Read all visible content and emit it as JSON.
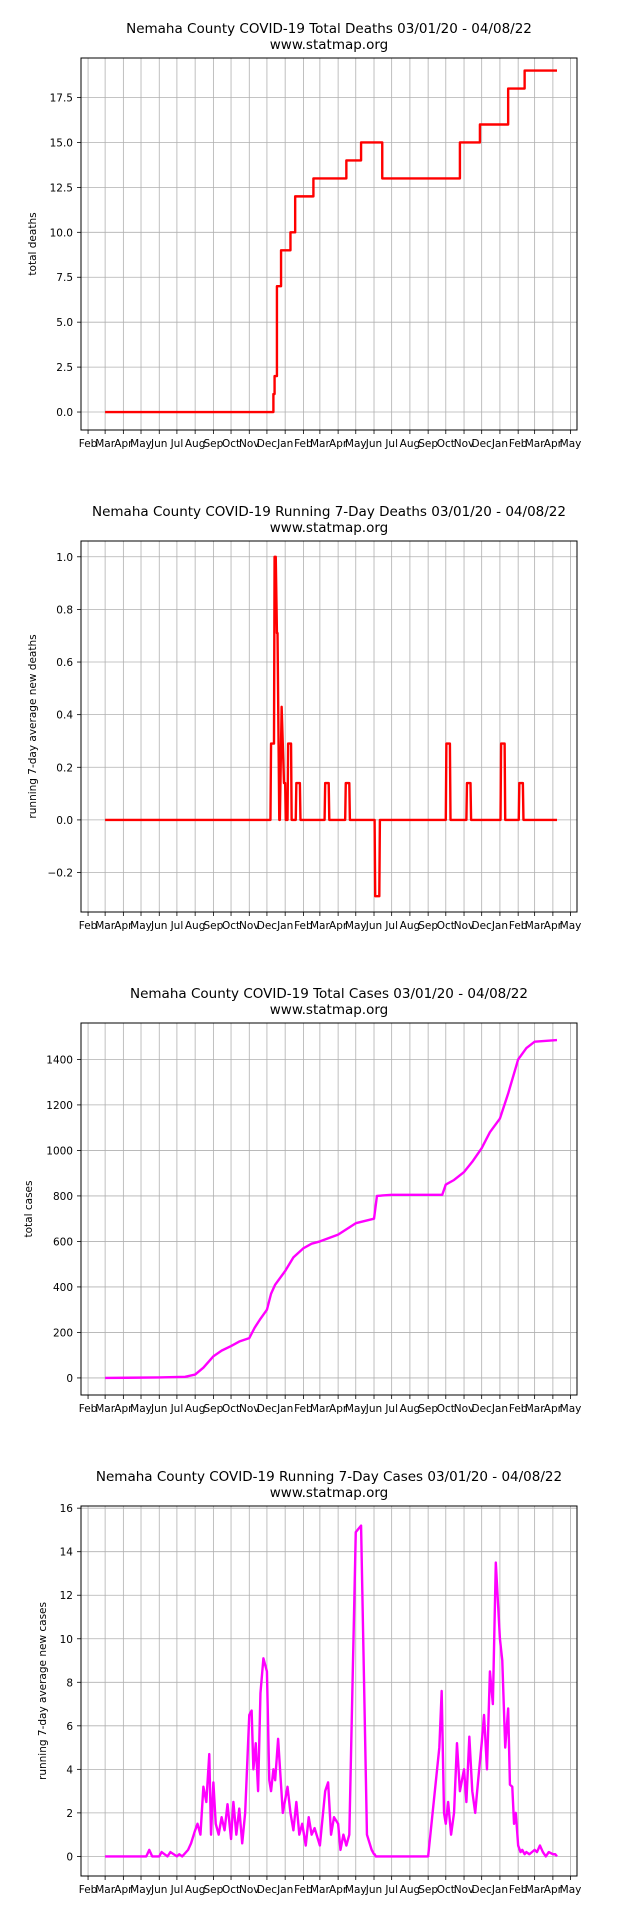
{
  "chart_data": [
    {
      "type": "line",
      "title": "Nemaha County COVID-19 Total Deaths 03/01/20 - 04/08/22",
      "subtitle": "www.statmap.org",
      "ylabel": "total deaths",
      "xlabel": "",
      "grid": true,
      "color": "#ff0000",
      "ylim": [
        -1.0,
        19.7
      ],
      "yticks": [
        0,
        2.5,
        5,
        7.5,
        10,
        12.5,
        15,
        17.5
      ],
      "ytick_labels": [
        "0.0",
        "2.5",
        "5.0",
        "7.5",
        "10.0",
        "12.5",
        "15.0",
        "17.5"
      ],
      "series": [
        {
          "x": [
            "2020-03-01",
            "2020-12-08",
            "2020-12-12",
            "2020-12-14",
            "2020-12-18",
            "2020-12-21",
            "2020-12-25",
            "2021-01-10",
            "2021-01-18",
            "2021-02-18",
            "2021-03-15",
            "2021-04-15",
            "2021-05-10",
            "2021-06-09",
            "2021-06-15",
            "2021-06-25",
            "2021-09-30",
            "2021-10-25",
            "2021-11-28",
            "2022-01-05",
            "2022-01-15",
            "2022-02-12",
            "2022-04-08"
          ],
          "y": [
            0,
            0,
            1,
            2,
            7,
            7,
            9,
            10,
            12,
            13,
            13,
            14,
            15,
            15,
            13,
            13,
            13,
            15,
            16,
            16,
            18,
            19,
            19
          ],
          "step": true
        }
      ]
    },
    {
      "type": "line",
      "title": "Nemaha County COVID-19 Running 7-Day Deaths 03/01/20 - 04/08/22",
      "subtitle": "www.statmap.org",
      "ylabel": "running 7-day average new deaths",
      "xlabel": "",
      "grid": true,
      "color": "#ff0000",
      "ylim": [
        -0.35,
        1.06
      ],
      "yticks": [
        -0.2,
        0,
        0.2,
        0.4,
        0.6,
        0.8,
        1.0
      ],
      "ytick_labels": [
        "−0.2",
        "0.0",
        "0.2",
        "0.4",
        "0.6",
        "0.8",
        "1.0"
      ],
      "series": [
        {
          "x": [
            "2020-03-01",
            "2020-12-07",
            "2020-12-08",
            "2020-12-13",
            "2020-12-14",
            "2020-12-16",
            "2020-12-18",
            "2020-12-19",
            "2020-12-22",
            "2020-12-23",
            "2020-12-25",
            "2020-12-26",
            "2020-12-30",
            "2021-01-01",
            "2021-01-02",
            "2021-01-05",
            "2021-01-06",
            "2021-01-11",
            "2021-01-12",
            "2021-01-19",
            "2021-01-20",
            "2021-01-26",
            "2021-01-27",
            "2021-03-09",
            "2021-03-10",
            "2021-03-16",
            "2021-03-17",
            "2021-04-13",
            "2021-04-14",
            "2021-04-20",
            "2021-04-21",
            "2021-06-02",
            "2021-06-03",
            "2021-06-10",
            "2021-06-11",
            "2021-10-01",
            "2021-10-02",
            "2021-10-08",
            "2021-10-09",
            "2021-11-05",
            "2021-11-06",
            "2021-11-12",
            "2021-11-13",
            "2022-01-02",
            "2022-01-03",
            "2022-01-09",
            "2022-01-10",
            "2022-02-02",
            "2022-02-03",
            "2022-02-09",
            "2022-02-10",
            "2022-04-08"
          ],
          "y": [
            0,
            0,
            0.29,
            0.29,
            1.0,
            1.0,
            0.71,
            0.71,
            0,
            0,
            0.29,
            0.43,
            0.14,
            0.14,
            0,
            0,
            0.29,
            0.29,
            0,
            0,
            0.14,
            0.14,
            0,
            0,
            0.14,
            0.14,
            0,
            0,
            0.14,
            0.14,
            0,
            0,
            -0.29,
            -0.29,
            0,
            0,
            0.29,
            0.29,
            0,
            0,
            0.14,
            0.14,
            0,
            0,
            0.29,
            0.29,
            0,
            0,
            0.14,
            0.14,
            0,
            0
          ],
          "step": false
        }
      ]
    },
    {
      "type": "line",
      "title": "Nemaha County COVID-19 Total Cases 03/01/20 - 04/08/22",
      "subtitle": "www.statmap.org",
      "ylabel": "total cases",
      "xlabel": "",
      "grid": true,
      "color": "#ff00ff",
      "ylim": [
        -75,
        1560
      ],
      "yticks": [
        0,
        200,
        400,
        600,
        800,
        1000,
        1200,
        1400
      ],
      "ytick_labels": [
        "0",
        "200",
        "400",
        "600",
        "800",
        "1000",
        "1200",
        "1400"
      ],
      "series": [
        {
          "x": [
            "2020-03-01",
            "2020-06-01",
            "2020-07-15",
            "2020-08-01",
            "2020-08-15",
            "2020-09-01",
            "2020-09-15",
            "2020-10-01",
            "2020-10-15",
            "2020-11-01",
            "2020-11-10",
            "2020-11-20",
            "2020-12-01",
            "2020-12-08",
            "2020-12-15",
            "2021-01-01",
            "2021-01-15",
            "2021-02-01",
            "2021-02-15",
            "2021-03-01",
            "2021-04-01",
            "2021-05-01",
            "2021-06-01",
            "2021-06-06",
            "2021-07-01",
            "2021-08-01",
            "2021-09-01",
            "2021-09-25",
            "2021-10-01",
            "2021-10-15",
            "2021-11-01",
            "2021-11-15",
            "2021-12-01",
            "2021-12-15",
            "2022-01-01",
            "2022-01-15",
            "2022-02-01",
            "2022-02-15",
            "2022-03-01",
            "2022-04-08"
          ],
          "y": [
            0,
            2,
            5,
            15,
            45,
            95,
            120,
            140,
            160,
            175,
            220,
            260,
            300,
            370,
            410,
            470,
            530,
            570,
            590,
            600,
            630,
            680,
            700,
            800,
            805,
            805,
            805,
            805,
            850,
            870,
            905,
            950,
            1010,
            1080,
            1140,
            1250,
            1400,
            1450,
            1478,
            1485
          ],
          "step": false
        }
      ]
    },
    {
      "type": "line",
      "title": "Nemaha County COVID-19 Running 7-Day Cases 03/01/20 - 04/08/22",
      "subtitle": "www.statmap.org",
      "ylabel": "running 7-day average new cases",
      "xlabel": "",
      "grid": true,
      "color": "#ff00ff",
      "ylim": [
        -0.9,
        16.1
      ],
      "yticks": [
        0,
        2,
        4,
        6,
        8,
        10,
        12,
        14,
        16
      ],
      "ytick_labels": [
        "0",
        "2",
        "4",
        "6",
        "8",
        "10",
        "12",
        "14",
        "16"
      ],
      "series": [
        {
          "x": [
            "2020-03-01",
            "2020-05-10",
            "2020-05-15",
            "2020-05-20",
            "2020-06-01",
            "2020-06-05",
            "2020-06-15",
            "2020-06-20",
            "2020-07-01",
            "2020-07-05",
            "2020-07-10",
            "2020-07-20",
            "2020-07-25",
            "2020-08-01",
            "2020-08-05",
            "2020-08-10",
            "2020-08-15",
            "2020-08-20",
            "2020-08-25",
            "2020-08-28",
            "2020-09-01",
            "2020-09-05",
            "2020-09-10",
            "2020-09-15",
            "2020-09-20",
            "2020-09-25",
            "2020-10-01",
            "2020-10-05",
            "2020-10-10",
            "2020-10-15",
            "2020-10-20",
            "2020-10-25",
            "2020-11-01",
            "2020-11-05",
            "2020-11-08",
            "2020-11-12",
            "2020-11-16",
            "2020-11-20",
            "2020-11-25",
            "2020-12-01",
            "2020-12-05",
            "2020-12-08",
            "2020-12-12",
            "2020-12-15",
            "2020-12-20",
            "2020-12-28",
            "2021-01-05",
            "2021-01-10",
            "2021-01-15",
            "2021-01-20",
            "2021-01-25",
            "2021-01-30",
            "2021-02-05",
            "2021-02-10",
            "2021-02-15",
            "2021-02-20",
            "2021-03-01",
            "2021-03-10",
            "2021-03-15",
            "2021-03-20",
            "2021-03-25",
            "2021-04-01",
            "2021-04-05",
            "2021-04-10",
            "2021-04-15",
            "2021-04-20",
            "2021-05-01",
            "2021-05-10",
            "2021-05-20",
            "2021-05-28",
            "2021-06-01",
            "2021-06-02",
            "2021-06-04",
            "2021-06-06",
            "2021-06-08",
            "2021-06-12",
            "2021-06-20",
            "2021-07-01",
            "2021-08-01",
            "2021-09-01",
            "2021-09-20",
            "2021-09-24",
            "2021-09-28",
            "2021-10-01",
            "2021-10-05",
            "2021-10-10",
            "2021-10-15",
            "2021-10-20",
            "2021-10-25",
            "2021-11-01",
            "2021-11-05",
            "2021-11-10",
            "2021-11-15",
            "2021-11-20",
            "2021-11-25",
            "2021-12-01",
            "2021-12-05",
            "2021-12-10",
            "2021-12-15",
            "2021-12-20",
            "2021-12-25",
            "2022-01-01",
            "2022-01-05",
            "2022-01-10",
            "2022-01-15",
            "2022-01-18",
            "2022-01-22",
            "2022-01-25",
            "2022-01-28",
            "2022-02-01",
            "2022-02-05",
            "2022-02-08",
            "2022-02-12",
            "2022-02-15",
            "2022-02-20",
            "2022-03-01",
            "2022-03-05",
            "2022-03-10",
            "2022-03-15",
            "2022-03-20",
            "2022-03-25",
            "2022-04-01",
            "2022-04-05",
            "2022-04-08"
          ],
          "y": [
            0,
            0,
            0.3,
            0,
            0,
            0.2,
            0,
            0.2,
            0,
            0.1,
            0,
            0.3,
            0.6,
            1.2,
            1.5,
            1.0,
            3.2,
            2.5,
            4.7,
            1.0,
            3.4,
            1.5,
            1.0,
            1.8,
            1.2,
            2.4,
            0.8,
            2.5,
            1.0,
            2.2,
            0.6,
            2.0,
            6.5,
            6.7,
            4.0,
            5.2,
            3.0,
            7.5,
            9.1,
            8.5,
            3.5,
            3.0,
            4.0,
            3.5,
            5.4,
            2.0,
            3.2,
            2.0,
            1.2,
            2.5,
            1.0,
            1.5,
            0.5,
            1.8,
            1.0,
            1.3,
            0.5,
            3.0,
            3.4,
            1.0,
            1.8,
            1.5,
            0.3,
            1.0,
            0.5,
            1.0,
            14.9,
            15.2,
            1.0,
            0.3,
            0.1,
            0.1,
            0,
            0,
            0,
            0,
            0,
            0,
            0,
            0,
            5.0,
            7.6,
            2.0,
            1.5,
            2.5,
            1.0,
            2.0,
            5.2,
            3.0,
            4.0,
            2.5,
            5.5,
            3.0,
            2.0,
            3.5,
            5.2,
            6.5,
            4.0,
            8.5,
            7.0,
            13.5,
            10.0,
            9.0,
            5.0,
            6.8,
            3.3,
            3.2,
            1.5,
            2.0,
            0.5,
            0.2,
            0.3,
            0.1,
            0.2,
            0.1,
            0.3,
            0.2,
            0.5,
            0.2,
            0,
            0.2,
            0.1,
            0.1,
            0
          ],
          "step": false
        }
      ]
    },
    {
      "x_tick_labels": [
        "Feb",
        "Mar",
        "Apr",
        "May",
        "Jun",
        "Jul",
        "Aug",
        "Sep",
        "Oct",
        "Nov",
        "Dec",
        "Jan",
        "Feb",
        "Mar",
        "Apr",
        "May",
        "Jun",
        "Jul",
        "Aug",
        "Sep",
        "Oct",
        "Nov",
        "Dec",
        "Jan",
        "Feb",
        "Mar",
        "Apr",
        "May"
      ],
      "x_tick_dates": [
        "2020-02-01",
        "2020-03-01",
        "2020-04-01",
        "2020-05-01",
        "2020-06-01",
        "2020-07-01",
        "2020-08-01",
        "2020-09-01",
        "2020-10-01",
        "2020-11-01",
        "2020-12-01",
        "2021-01-01",
        "2021-02-01",
        "2021-03-01",
        "2021-04-01",
        "2021-05-01",
        "2021-06-01",
        "2021-07-01",
        "2021-08-01",
        "2021-09-01",
        "2021-10-01",
        "2021-11-01",
        "2021-12-01",
        "2022-01-01",
        "2022-02-01",
        "2022-03-01",
        "2022-04-01",
        "2022-05-01"
      ],
      "xlim": [
        "2020-01-20",
        "2022-05-12"
      ]
    }
  ]
}
